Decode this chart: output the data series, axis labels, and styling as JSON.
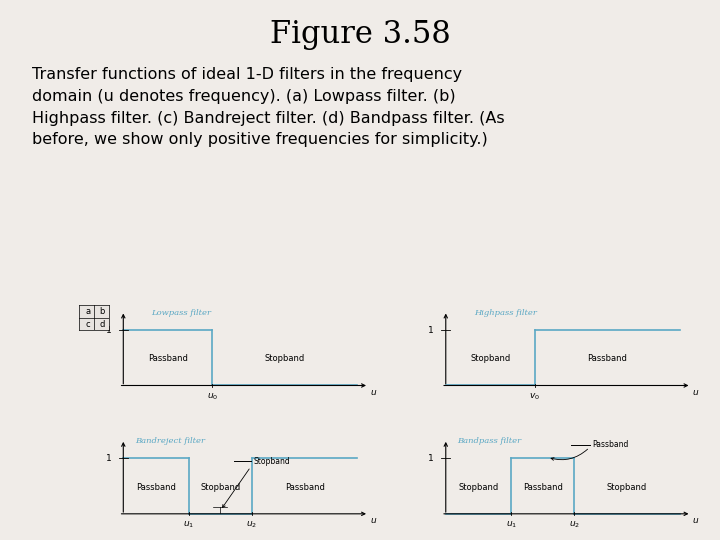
{
  "title": "Figure 3.58",
  "description": "Transfer functions of ideal 1-D filters in the frequency\ndomain (u denotes frequency). (a) Lowpass filter. (b)\nHighpass filter. (c) Bandreject filter. (d) Bandpass filter. (As\nbefore, we show only positive frequencies for simplicity.)",
  "background_color": "#f0ece8",
  "title_fontsize": 22,
  "desc_fontsize": 11.5,
  "filter_color": "#5ba8c4",
  "filter_label_color": "#5ba8c4",
  "axis_color": "#000000",
  "text_color": "#000000",
  "filters": [
    {
      "name": "Lowpass filter",
      "type": "lowpass",
      "cutoff": 0.38,
      "passband_label": "Passband",
      "stopband_label": "Stopband",
      "u_label": "u_0"
    },
    {
      "name": "Highpass filter",
      "type": "highpass",
      "cutoff": 0.38,
      "passband_label": "Passband",
      "stopband_label": "Stopband",
      "u_label": "v_0"
    },
    {
      "name": "Bandreject filter",
      "type": "bandreject",
      "cutoff1": 0.28,
      "cutoff2": 0.55,
      "passband_label": "Passband",
      "stopband_label": "Stopband",
      "u1_label": "u_1",
      "u2_label": "u_2",
      "annotation": "Stopband"
    },
    {
      "name": "Bandpass filter",
      "type": "bandpass",
      "cutoff1": 0.28,
      "cutoff2": 0.55,
      "passband_label": "Passband",
      "stopband_label": "Stopband",
      "u1_label": "u_1",
      "u2_label": "u_2",
      "annotation": "Passband"
    }
  ]
}
